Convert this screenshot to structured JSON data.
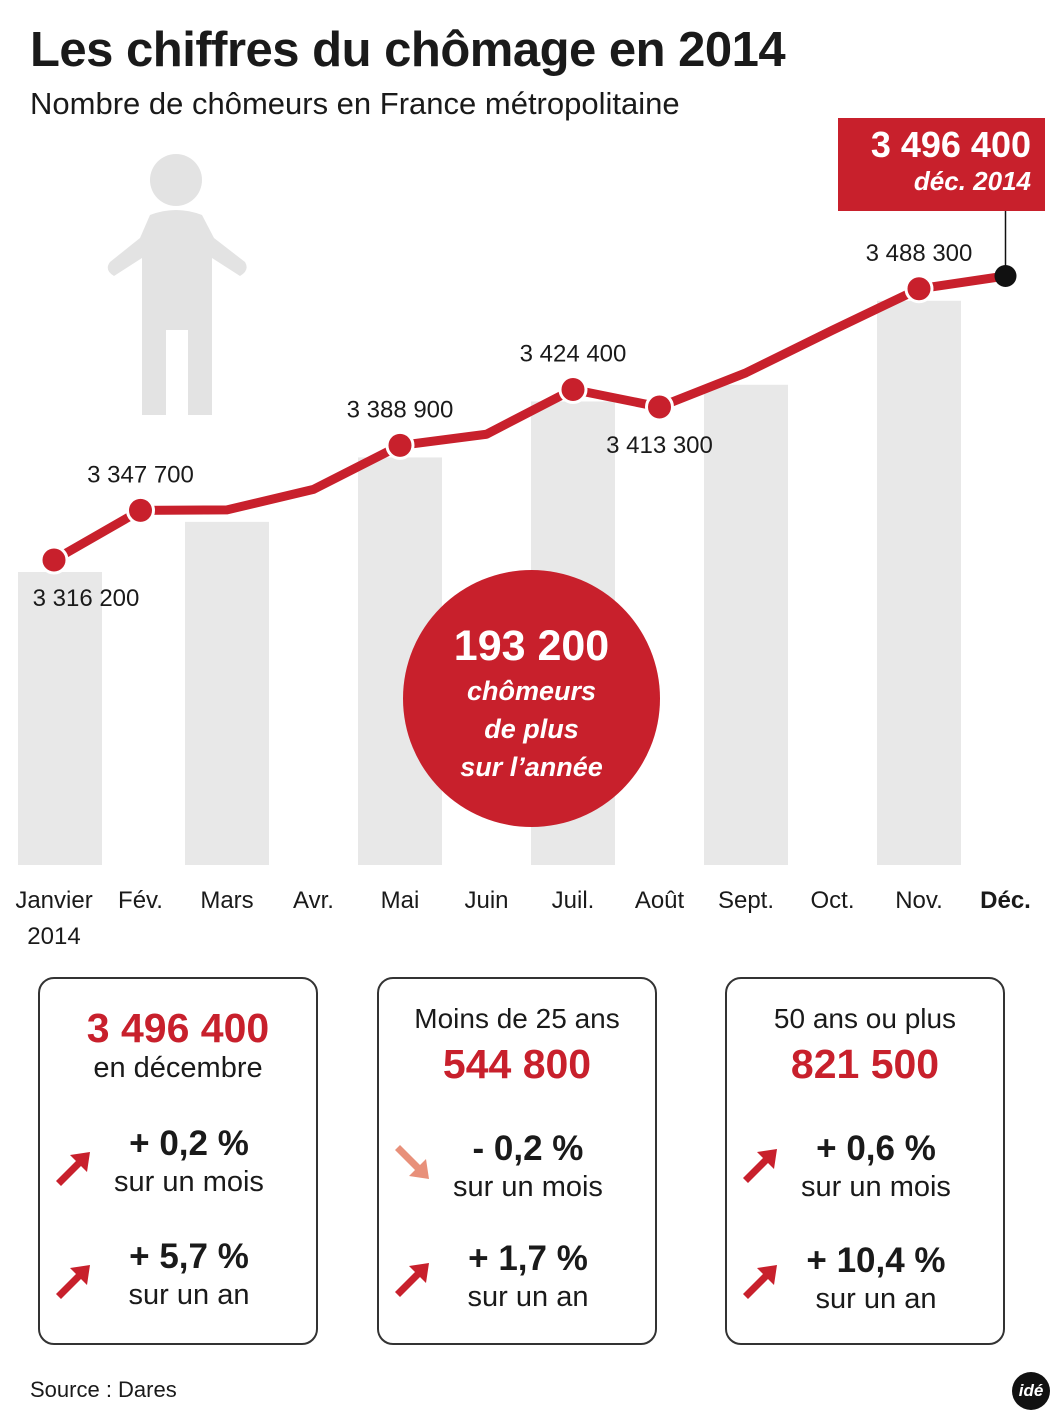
{
  "header": {
    "title": "Les chiffres du chômage en 2014",
    "subtitle": "Nombre de chômeurs en France métropolitaine"
  },
  "chart_data": {
    "type": "line",
    "title": "Les chiffres du chômage en 2014",
    "subtitle": "Nombre de chômeurs en France métropolitaine",
    "categories": [
      "Janvier 2014",
      "Fév.",
      "Mars",
      "Avr.",
      "Mai",
      "Juin",
      "Juil.",
      "Août",
      "Sept.",
      "Oct.",
      "Nov.",
      "Déc."
    ],
    "values": [
      3316200,
      3347700,
      3348000,
      3361000,
      3388900,
      3396000,
      3424400,
      3413300,
      3435000,
      3462000,
      3488300,
      3496400
    ],
    "point_labels": [
      "3 316 200",
      "3 347 700",
      "",
      "",
      "3 388 900",
      "",
      "3 424 400",
      "3 413 300",
      "",
      "",
      "3 488 300",
      ""
    ],
    "highlight_month": "Déc.",
    "line_color": "#c8202c",
    "bar_color": "#e8e8e8",
    "ylim": [
      3250000,
      3510000
    ],
    "grid": false,
    "legend": "none"
  },
  "callout": {
    "value": "3 496 400",
    "label": "déc. 2014"
  },
  "bubble": {
    "value": "193 200",
    "lines": [
      "chômeurs",
      "de plus",
      "sur l’année"
    ]
  },
  "cards": [
    {
      "head": "",
      "value": "3 496 400",
      "sub": "en décembre",
      "stats": [
        {
          "pct": "+ 0,2 %",
          "label": "sur un mois",
          "dir": "up"
        },
        {
          "pct": "+ 5,7 %",
          "label": "sur un an",
          "dir": "up"
        }
      ]
    },
    {
      "head": "Moins de 25 ans",
      "value": "544 800",
      "sub": "",
      "stats": [
        {
          "pct": "- 0,2 %",
          "label": "sur un mois",
          "dir": "down"
        },
        {
          "pct": "+ 1,7 %",
          "label": "sur un an",
          "dir": "up"
        }
      ]
    },
    {
      "head": "50 ans ou plus",
      "value": "821 500",
      "sub": "",
      "stats": [
        {
          "pct": "+ 0,6 %",
          "label": "sur un mois",
          "dir": "up"
        },
        {
          "pct": "+ 10,4 %",
          "label": "sur un an",
          "dir": "up"
        }
      ]
    }
  ],
  "colors": {
    "accent": "#c8202c",
    "arrow_down": "#e8907a",
    "bar": "#e8e8e8",
    "figure": "#e3e3e3"
  },
  "source": "Source : Dares",
  "logo": "idé"
}
